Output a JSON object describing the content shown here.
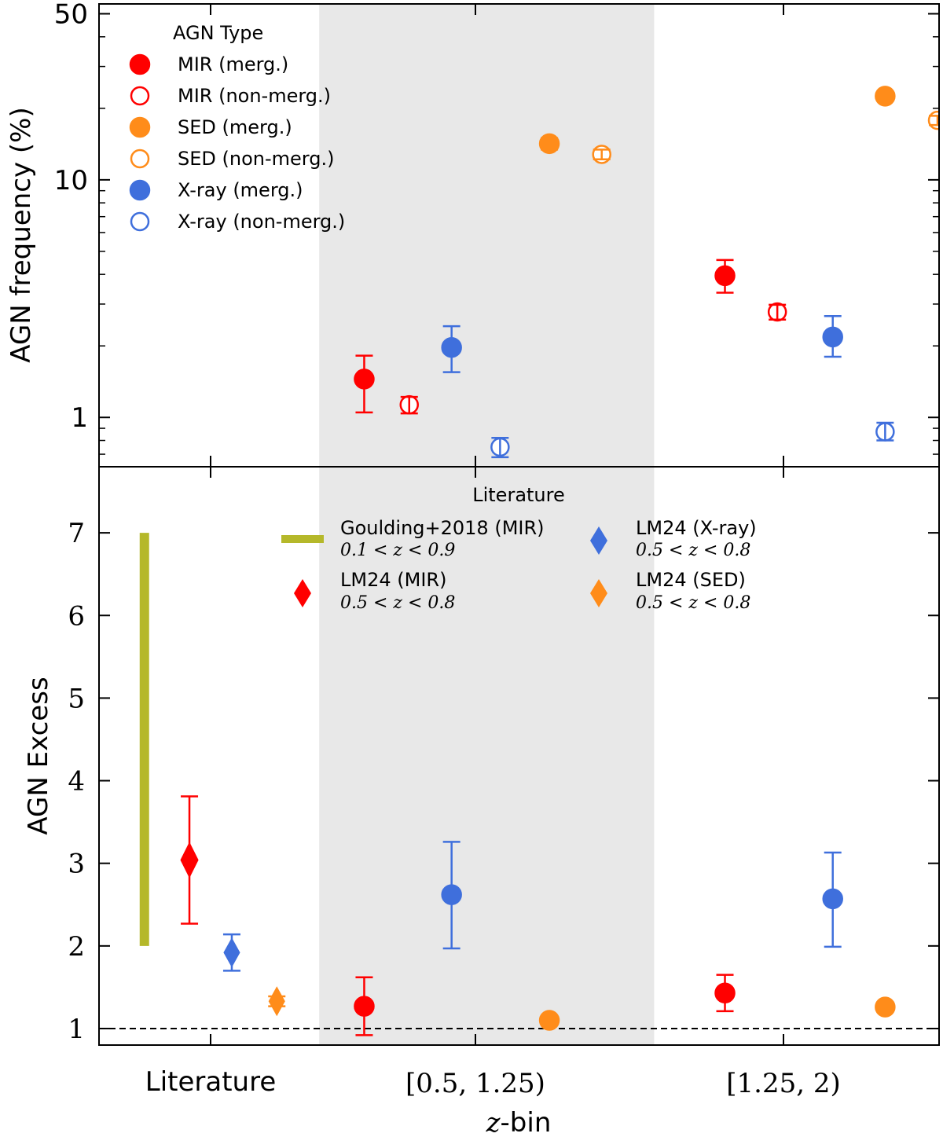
{
  "colors": {
    "mir": "#ff0000",
    "sed": "#ff8c1a",
    "xray": "#3f6fdc",
    "goulding": "#b5b82a",
    "shade": "#e8e8e8",
    "axis": "#000000"
  },
  "x_axis": {
    "label": "z-bin",
    "label_italic": "z",
    "label_rest": "-bin",
    "ticks": [
      {
        "label": "Literature",
        "value": 0
      },
      {
        "label": "[0.5, 1.25)",
        "value": 1
      },
      {
        "label": "[1.25, 2)",
        "value": 2
      }
    ]
  },
  "chart_data": [
    {
      "type": "scatter",
      "title": "",
      "ylabel": "AGN frequency (%)",
      "yscale": "log",
      "ylim": [
        0.62,
        55
      ],
      "yticks": [
        1,
        10,
        50
      ],
      "ytick_labels": [
        "1",
        "10",
        "50"
      ],
      "shaded_xrange": [
        0.41,
        1.58
      ],
      "legend": {
        "title": "AGN Type",
        "position": "top-left",
        "entries": [
          {
            "label": "MIR (merg.)",
            "type": "MIR",
            "merger": true
          },
          {
            "label": "MIR (non-merg.)",
            "type": "MIR",
            "merger": false
          },
          {
            "label": "SED (merg.)",
            "type": "SED",
            "merger": true
          },
          {
            "label": "SED (non-merg.)",
            "type": "SED",
            "merger": false
          },
          {
            "label": "X-ray (merg.)",
            "type": "X-ray",
            "merger": true
          },
          {
            "label": "X-ray (non-merg.)",
            "type": "X-ray",
            "merger": false
          }
        ]
      },
      "series": [
        {
          "name": "MIR (merg.)",
          "type": "MIR",
          "filled": true,
          "points": [
            {
              "x": 0.58,
              "y": 1.45,
              "ylo": 1.05,
              "yhi": 1.82
            },
            {
              "x": 1.81,
              "y": 3.95,
              "ylo": 3.35,
              "yhi": 4.6
            }
          ]
        },
        {
          "name": "MIR (non-merg.)",
          "type": "MIR",
          "filled": false,
          "points": [
            {
              "x": 0.75,
              "y": 1.13,
              "ylo": 1.04,
              "yhi": 1.22
            },
            {
              "x": 1.98,
              "y": 2.78,
              "ylo": 2.58,
              "yhi": 2.98
            }
          ]
        },
        {
          "name": "SED (merg.)",
          "type": "SED",
          "filled": true,
          "points": [
            {
              "x": 1.24,
              "y": 14.2,
              "ylo": 13.4,
              "yhi": 15.0
            },
            {
              "x": 2.33,
              "y": 22.5,
              "ylo": 21.6,
              "yhi": 23.4
            }
          ]
        },
        {
          "name": "SED (non-merg.)",
          "type": "SED",
          "filled": false,
          "points": [
            {
              "x": 1.41,
              "y": 12.8,
              "ylo": 12.2,
              "yhi": 13.4
            },
            {
              "x": 2.5,
              "y": 17.8,
              "ylo": 17.0,
              "yhi": 18.6
            }
          ]
        },
        {
          "name": "X-ray (merg.)",
          "type": "X-ray",
          "filled": true,
          "points": [
            {
              "x": 0.91,
              "y": 1.97,
              "ylo": 1.55,
              "yhi": 2.42
            },
            {
              "x": 2.16,
              "y": 2.18,
              "ylo": 1.8,
              "yhi": 2.67
            }
          ]
        },
        {
          "name": "X-ray (non-merg.)",
          "type": "X-ray",
          "filled": false,
          "points": [
            {
              "x": 1.08,
              "y": 0.75,
              "ylo": 0.68,
              "yhi": 0.82
            },
            {
              "x": 2.33,
              "y": 0.87,
              "ylo": 0.8,
              "yhi": 0.95
            }
          ]
        }
      ]
    },
    {
      "type": "scatter",
      "title": "",
      "ylabel": "AGN Excess",
      "yscale": "linear",
      "ylim": [
        0.8,
        7.8
      ],
      "yticks": [
        1,
        2,
        3,
        4,
        5,
        6,
        7
      ],
      "ytick_labels": [
        "1",
        "2",
        "3",
        "4",
        "5",
        "6",
        "7"
      ],
      "reference_line": {
        "y": 1,
        "style": "dashed"
      },
      "shaded_xrange": [
        0.41,
        1.58
      ],
      "series": [
        {
          "name": "MIR",
          "type": "MIR",
          "filled": true,
          "points": [
            {
              "x": 0.58,
              "y": 1.27,
              "ylo": 0.92,
              "yhi": 1.62
            },
            {
              "x": 1.81,
              "y": 1.43,
              "ylo": 1.21,
              "yhi": 1.65
            }
          ]
        },
        {
          "name": "SED",
          "type": "SED",
          "filled": true,
          "points": [
            {
              "x": 1.24,
              "y": 1.1,
              "ylo": 1.06,
              "yhi": 1.14
            },
            {
              "x": 2.33,
              "y": 1.26,
              "ylo": 1.22,
              "yhi": 1.3
            }
          ]
        },
        {
          "name": "X-ray",
          "type": "X-ray",
          "filled": true,
          "points": [
            {
              "x": 0.91,
              "y": 2.62,
              "ylo": 1.97,
              "yhi": 3.26
            },
            {
              "x": 2.16,
              "y": 2.57,
              "ylo": 1.99,
              "yhi": 3.13
            }
          ]
        }
      ],
      "literature": {
        "title": "Literature",
        "entries": [
          {
            "name": "Goulding+2018 (MIR)",
            "range_text": "0.1 < z < 0.9",
            "marker": "bar",
            "color_key": "goulding",
            "x": -0.25,
            "ylo": 2.0,
            "yhi": 7.0
          },
          {
            "name": "LM24 (MIR)",
            "range_text": "0.5 < z < 0.8",
            "marker": "diamond",
            "color_key": "mir",
            "x": -0.08,
            "y": 3.04,
            "ylo": 2.27,
            "yhi": 3.81
          },
          {
            "name": "LM24 (X-ray)",
            "range_text": "0.5 < z < 0.8",
            "marker": "diamond",
            "color_key": "xray",
            "x": 0.08,
            "y": 1.92,
            "ylo": 1.7,
            "yhi": 2.14
          },
          {
            "name": "LM24 (SED)",
            "range_text": "0.5 < z < 0.8",
            "marker": "diamond",
            "color_key": "sed",
            "x": 0.25,
            "y": 1.33,
            "ylo": 1.27,
            "yhi": 1.39
          }
        ]
      }
    }
  ]
}
